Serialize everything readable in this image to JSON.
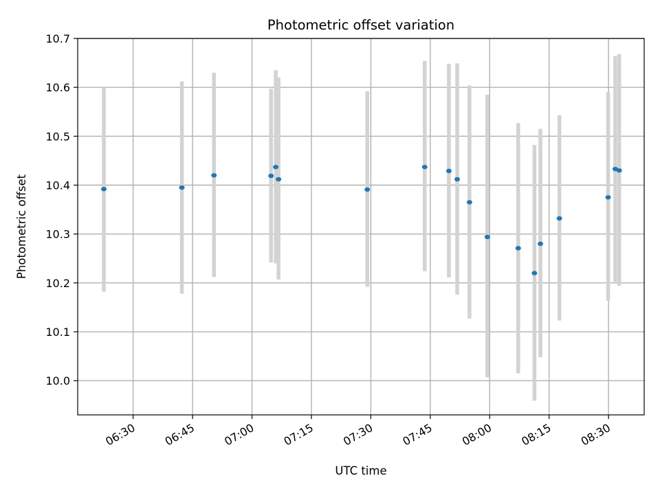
{
  "chart_data": {
    "type": "scatter",
    "title": "Photometric offset variation",
    "xlabel": "UTC time",
    "ylabel": "Photometric offset",
    "x_ticks": [
      "06:30",
      "06:45",
      "07:00",
      "07:15",
      "07:30",
      "07:45",
      "08:00",
      "08:15",
      "08:30"
    ],
    "y_ticks": [
      "10.0",
      "10.1",
      "10.2",
      "10.3",
      "10.4",
      "10.5",
      "10.6",
      "10.7"
    ],
    "xlim": [
      "06:16",
      "08:39"
    ],
    "ylim": [
      9.93,
      10.7
    ],
    "grid": true,
    "marker_color": "#1f77b4",
    "errorbar_color": "#d3d3d3",
    "points": [
      {
        "x": "06:22.6",
        "y": 10.392,
        "ylow": 10.182,
        "yhigh": 10.602
      },
      {
        "x": "06:42.3",
        "y": 10.395,
        "ylow": 10.178,
        "yhigh": 10.612
      },
      {
        "x": "06:50.4",
        "y": 10.42,
        "ylow": 10.212,
        "yhigh": 10.63
      },
      {
        "x": "07:04.8",
        "y": 10.419,
        "ylow": 10.242,
        "yhigh": 10.597
      },
      {
        "x": "07:06.0",
        "y": 10.437,
        "ylow": 10.24,
        "yhigh": 10.635
      },
      {
        "x": "07:06.7",
        "y": 10.412,
        "ylow": 10.207,
        "yhigh": 10.62
      },
      {
        "x": "07:29.1",
        "y": 10.391,
        "ylow": 10.192,
        "yhigh": 10.592
      },
      {
        "x": "07:43.6",
        "y": 10.437,
        "ylow": 10.224,
        "yhigh": 10.654
      },
      {
        "x": "07:49.7",
        "y": 10.429,
        "ylow": 10.211,
        "yhigh": 10.648
      },
      {
        "x": "07:51.8",
        "y": 10.412,
        "ylow": 10.176,
        "yhigh": 10.649
      },
      {
        "x": "07:54.9",
        "y": 10.365,
        "ylow": 10.127,
        "yhigh": 10.604
      },
      {
        "x": "07:59.4",
        "y": 10.294,
        "ylow": 10.007,
        "yhigh": 10.585
      },
      {
        "x": "08:07.2",
        "y": 10.271,
        "ylow": 10.015,
        "yhigh": 10.527
      },
      {
        "x": "08:11.3",
        "y": 10.22,
        "ylow": 9.959,
        "yhigh": 10.482
      },
      {
        "x": "08:12.8",
        "y": 10.28,
        "ylow": 10.048,
        "yhigh": 10.515
      },
      {
        "x": "08:17.6",
        "y": 10.332,
        "ylow": 10.123,
        "yhigh": 10.543
      },
      {
        "x": "08:29.9",
        "y": 10.375,
        "ylow": 10.163,
        "yhigh": 10.59
      },
      {
        "x": "08:31.7",
        "y": 10.433,
        "ylow": 10.202,
        "yhigh": 10.664
      },
      {
        "x": "08:32.7",
        "y": 10.43,
        "ylow": 10.194,
        "yhigh": 10.668
      }
    ]
  }
}
